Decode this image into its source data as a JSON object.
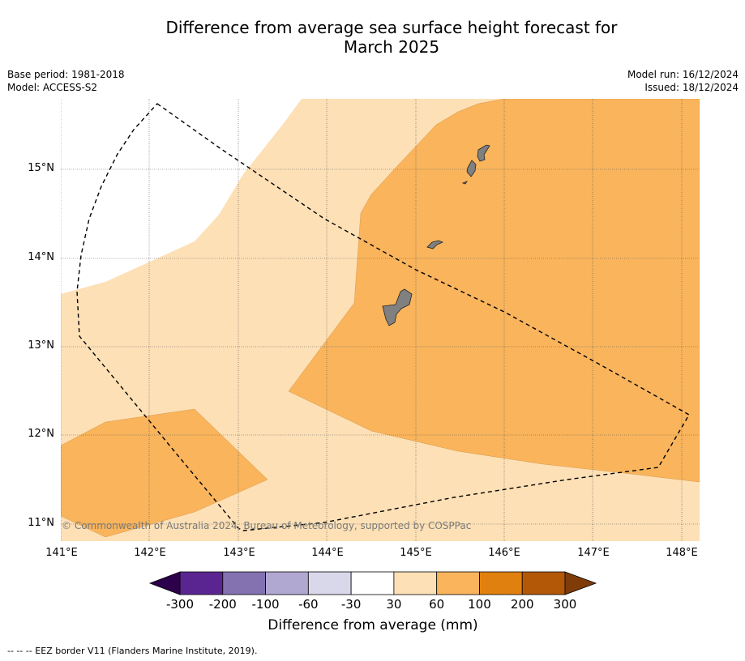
{
  "title_line1": "Difference from average sea surface height forecast for",
  "title_line2": "March 2025",
  "base_period": "Base period: 1981-2018",
  "model": "Model: ACCESS-S2",
  "model_run": "Model run: 16/12/2024",
  "issued": "Issued: 18/12/2024",
  "copyright": "© Commonwealth of Australia 2024, Bureau of Meteorology, supported by COSPPac",
  "lat_labels": [
    "15°N",
    "14°N",
    "13°N",
    "12°N",
    "11°N"
  ],
  "lon_labels": [
    "141°E",
    "142°E",
    "143°E",
    "144°E",
    "145°E",
    "146°E",
    "147°E",
    "148°E"
  ],
  "colorbar": {
    "ticks": [
      "-300",
      "-200",
      "-100",
      "-60",
      "-30",
      "30",
      "60",
      "100",
      "200",
      "300"
    ],
    "colors": [
      "#5a2590",
      "#8472b0",
      "#b1a8d2",
      "#d9d8eb",
      "#ffffff",
      "#fde0b6",
      "#f9b45c",
      "#e0810f",
      "#b35806"
    ],
    "extend_low_color": "#2d004b",
    "extend_high_color": "#7f3b08",
    "title": "Difference from average (mm)"
  },
  "legend_footnote": "--  --  -- EEZ border V11 (Flanders Marine Institute, 2019).",
  "map_colors": {
    "band_30_60": "#fde0b6",
    "band_60_100": "#f9b45c",
    "band_m30_30": "#ffffff",
    "land": "#808080"
  }
}
